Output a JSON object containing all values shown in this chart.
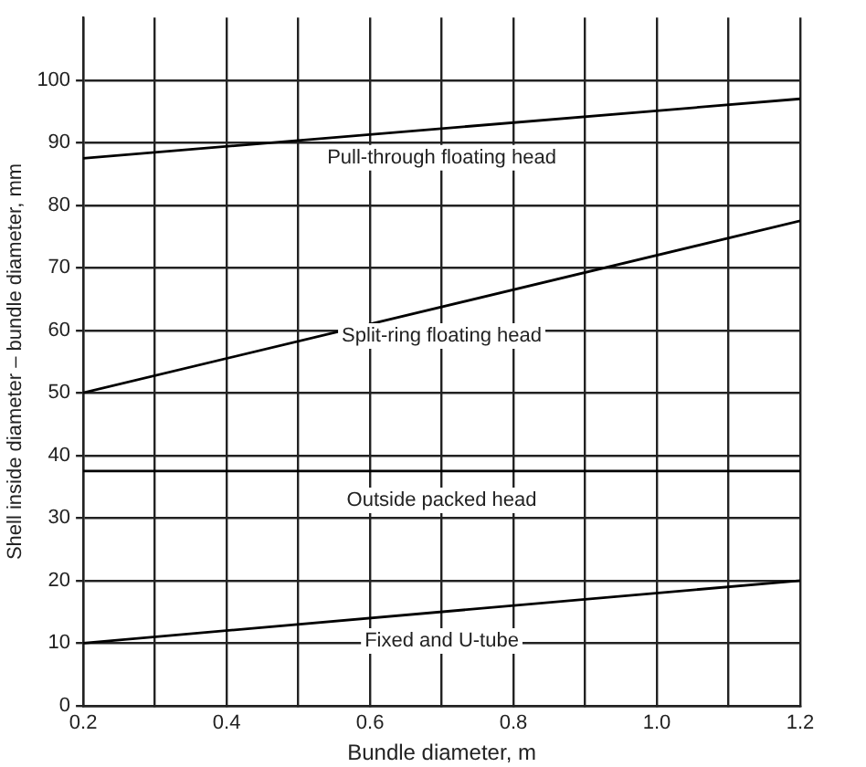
{
  "chart_data": {
    "type": "line",
    "xlabel": "Bundle diameter, m",
    "ylabel": "Shell inside diameter – bundle diameter, mm",
    "x": [
      0.2,
      1.2
    ],
    "series": [
      {
        "name": "Pull-through floating head",
        "color": "#000000",
        "values": [
          87.5,
          97
        ]
      },
      {
        "name": "Split-ring floating head",
        "color": "#000000",
        "values": [
          50,
          77.5
        ]
      },
      {
        "name": "Outside packed head",
        "color": "#000000",
        "values": [
          37.5,
          37.5
        ]
      },
      {
        "name": "Fixed and U-tube",
        "color": "#000000",
        "values": [
          10,
          20
        ]
      }
    ],
    "xlim": [
      0.2,
      1.2
    ],
    "xticks": [
      {
        "value": 0.2,
        "label": "0.2"
      },
      {
        "value": 0.3,
        "label": null
      },
      {
        "value": 0.4,
        "label": "0.4"
      },
      {
        "value": 0.5,
        "label": null
      },
      {
        "value": 0.6,
        "label": "0.6"
      },
      {
        "value": 0.7,
        "label": null
      },
      {
        "value": 0.8,
        "label": "0.8"
      },
      {
        "value": 0.9,
        "label": null
      },
      {
        "value": 1.0,
        "label": "1.0"
      },
      {
        "value": 1.1,
        "label": null
      },
      {
        "value": 1.2,
        "label": "1.2"
      }
    ],
    "ylim": [
      0,
      110
    ],
    "yticks": [
      0,
      10,
      20,
      30,
      40,
      50,
      60,
      70,
      80,
      90,
      100
    ],
    "grid": true,
    "legend": false,
    "marker": "none",
    "line_style": "solid"
  }
}
